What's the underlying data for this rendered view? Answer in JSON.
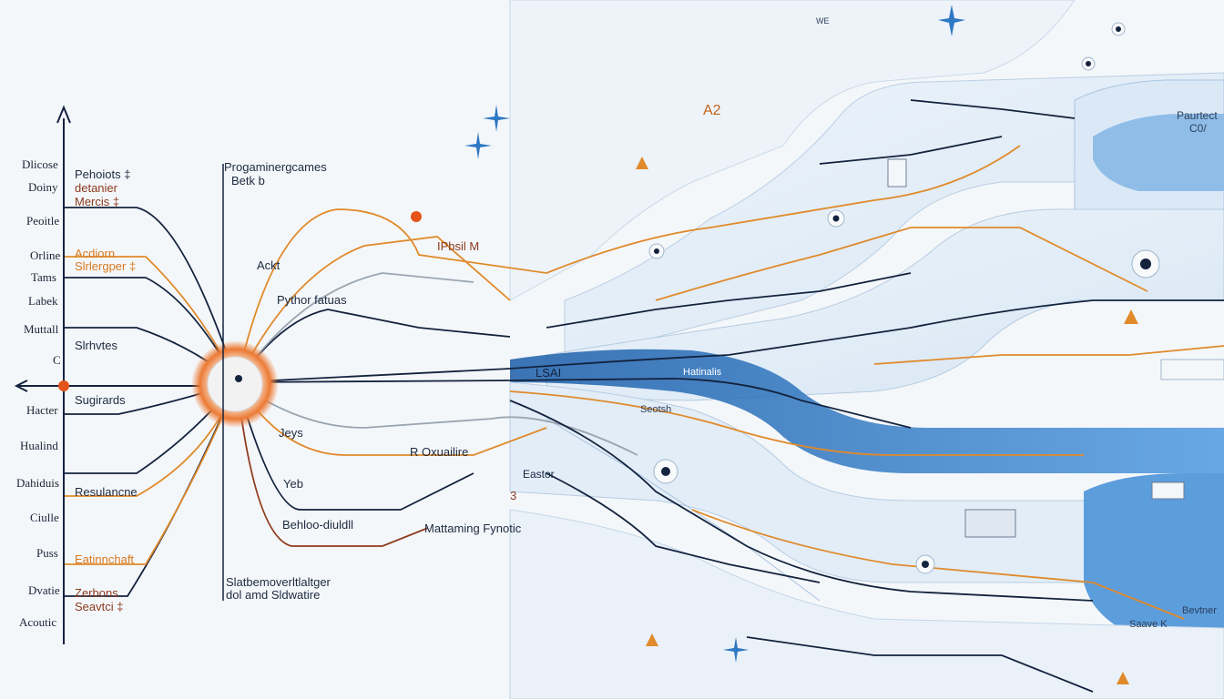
{
  "axis_labels": [
    "Dlicose",
    "Doiny",
    "Peoitle",
    "Orline",
    "Tams",
    "Labek",
    "Muttall",
    "C",
    "Hacter",
    "Hualind",
    "Dahiduis",
    "Ciulle",
    "Puss",
    "Dvatie",
    "Acoutic"
  ],
  "left_nodes": [
    {
      "text": "Pehoiots ‡",
      "color": "dark"
    },
    {
      "text": "detanier",
      "color": "brown"
    },
    {
      "text": "Mercis ‡",
      "color": "brown"
    },
    {
      "text": "Acdiorn",
      "color": "orange"
    },
    {
      "text": "Slrlergper ‡",
      "color": "orange"
    },
    {
      "text": "Slrhvtes",
      "color": "dark"
    },
    {
      "text": "Sugirards",
      "color": "dark"
    },
    {
      "text": "Resulancne",
      "color": "dark"
    },
    {
      "text": "Eatinnchaft",
      "color": "orange"
    },
    {
      "text": "Zerbons",
      "color": "brown"
    },
    {
      "text": "Seavtci ‡",
      "color": "brown"
    }
  ],
  "center_nodes": [
    {
      "text": "Progaminergcames"
    },
    {
      "text": "Betk b"
    },
    {
      "text": "Ackt"
    },
    {
      "text": "Pythor fatuas"
    },
    {
      "text": "Jeys"
    },
    {
      "text": "Yeb"
    },
    {
      "text": "Behloo-diuldll"
    },
    {
      "text": "R Oxuailire"
    },
    {
      "text": "Mattaming Fynotic"
    },
    {
      "text": "Slatbemoverltlaltger"
    },
    {
      "text": "dol amd Sldwatire"
    },
    {
      "text": "IPbsil M"
    },
    {
      "text": "A2"
    },
    {
      "text": "3"
    }
  ],
  "panel_labels": [
    {
      "text": "LSAI"
    },
    {
      "text": "Hatinalis"
    },
    {
      "text": "Seotsh"
    },
    {
      "text": "Eastor"
    },
    {
      "text": "Paurtect"
    },
    {
      "text": "C0/"
    },
    {
      "text": "Bevtner"
    },
    {
      "text": "Saave K"
    },
    {
      "text": "WE"
    }
  ],
  "colors": {
    "navy": "#13233e",
    "orange": "#e08a2b",
    "brown": "#8e3b1d",
    "gray": "#9aa5b0",
    "blue": "#2f78c4",
    "light_blue": "#cfe2f4",
    "accent_red": "#e3531a"
  },
  "icons": [
    "warning-icon",
    "sparkle-icon",
    "gear-icon",
    "camera-icon",
    "arrow-up-icon",
    "arrow-left-icon"
  ]
}
